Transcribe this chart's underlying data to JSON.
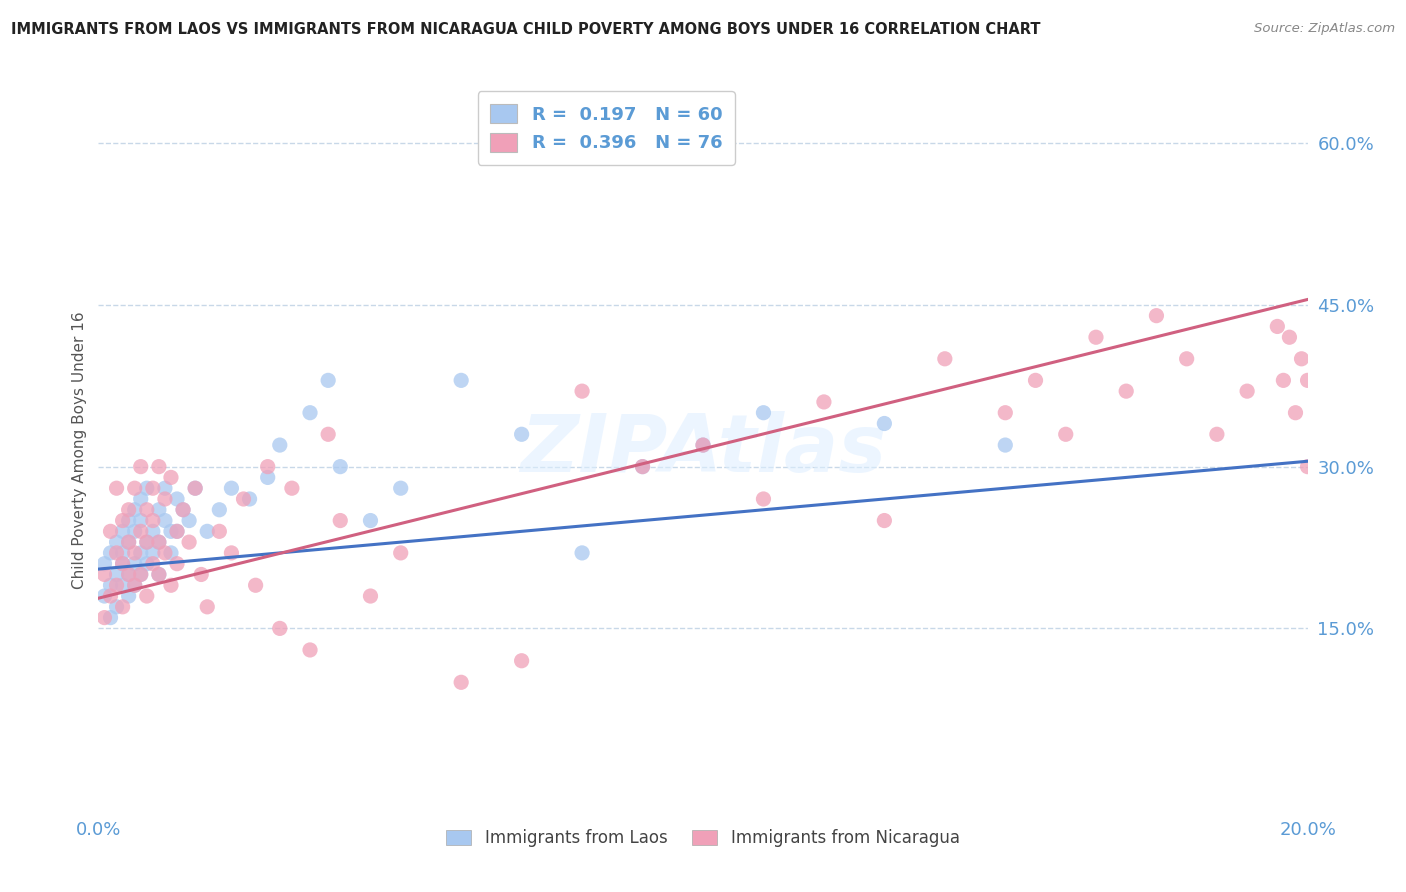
{
  "title": "IMMIGRANTS FROM LAOS VS IMMIGRANTS FROM NICARAGUA CHILD POVERTY AMONG BOYS UNDER 16 CORRELATION CHART",
  "source": "Source: ZipAtlas.com",
  "ylabel": "Child Poverty Among Boys Under 16",
  "xlim": [
    0.0,
    0.2
  ],
  "ylim": [
    -0.02,
    0.65
  ],
  "ytick_vals": [
    0.15,
    0.3,
    0.45,
    0.6
  ],
  "ytick_labels": [
    "15.0%",
    "30.0%",
    "45.0%",
    "60.0%"
  ],
  "xtick_vals": [
    0.0,
    0.2
  ],
  "xtick_labels": [
    "0.0%",
    "20.0%"
  ],
  "series1_color": "#a8c8f0",
  "series1_line_color": "#4472c4",
  "series2_color": "#f0a0b8",
  "series2_line_color": "#d06080",
  "R1": 0.197,
  "N1": 60,
  "R2": 0.396,
  "N2": 76,
  "legend_label1": "Immigrants from Laos",
  "legend_label2": "Immigrants from Nicaragua",
  "watermark": "ZIPAtlas",
  "title_color": "#222222",
  "axis_color": "#5b9bd5",
  "grid_color": "#c8d8e8",
  "background_color": "#ffffff",
  "trendline1_x0": 0.0,
  "trendline1_y0": 0.205,
  "trendline1_x1": 0.2,
  "trendline1_y1": 0.305,
  "trendline2_x0": 0.0,
  "trendline2_y0": 0.178,
  "trendline2_x1": 0.2,
  "trendline2_y1": 0.455,
  "laos_x": [
    0.001,
    0.001,
    0.002,
    0.002,
    0.002,
    0.003,
    0.003,
    0.003,
    0.004,
    0.004,
    0.004,
    0.004,
    0.005,
    0.005,
    0.005,
    0.005,
    0.006,
    0.006,
    0.006,
    0.006,
    0.007,
    0.007,
    0.007,
    0.007,
    0.008,
    0.008,
    0.008,
    0.009,
    0.009,
    0.01,
    0.01,
    0.01,
    0.011,
    0.011,
    0.012,
    0.012,
    0.013,
    0.013,
    0.014,
    0.015,
    0.016,
    0.018,
    0.02,
    0.022,
    0.025,
    0.028,
    0.03,
    0.035,
    0.038,
    0.04,
    0.045,
    0.05,
    0.06,
    0.07,
    0.08,
    0.09,
    0.1,
    0.11,
    0.13,
    0.15
  ],
  "laos_y": [
    0.21,
    0.18,
    0.22,
    0.19,
    0.16,
    0.23,
    0.2,
    0.17,
    0.24,
    0.21,
    0.19,
    0.22,
    0.2,
    0.25,
    0.18,
    0.23,
    0.21,
    0.26,
    0.19,
    0.24,
    0.22,
    0.27,
    0.2,
    0.25,
    0.23,
    0.28,
    0.21,
    0.24,
    0.22,
    0.26,
    0.23,
    0.2,
    0.25,
    0.28,
    0.24,
    0.22,
    0.27,
    0.24,
    0.26,
    0.25,
    0.28,
    0.24,
    0.26,
    0.28,
    0.27,
    0.29,
    0.32,
    0.35,
    0.38,
    0.3,
    0.25,
    0.28,
    0.38,
    0.33,
    0.22,
    0.3,
    0.32,
    0.35,
    0.34,
    0.32
  ],
  "nicaragua_x": [
    0.001,
    0.001,
    0.002,
    0.002,
    0.003,
    0.003,
    0.003,
    0.004,
    0.004,
    0.004,
    0.005,
    0.005,
    0.005,
    0.006,
    0.006,
    0.006,
    0.007,
    0.007,
    0.007,
    0.008,
    0.008,
    0.008,
    0.009,
    0.009,
    0.009,
    0.01,
    0.01,
    0.01,
    0.011,
    0.011,
    0.012,
    0.012,
    0.013,
    0.013,
    0.014,
    0.015,
    0.016,
    0.017,
    0.018,
    0.02,
    0.022,
    0.024,
    0.026,
    0.028,
    0.03,
    0.032,
    0.035,
    0.038,
    0.04,
    0.045,
    0.05,
    0.06,
    0.07,
    0.08,
    0.09,
    0.1,
    0.11,
    0.12,
    0.13,
    0.14,
    0.15,
    0.155,
    0.16,
    0.165,
    0.17,
    0.175,
    0.18,
    0.185,
    0.19,
    0.195,
    0.196,
    0.197,
    0.198,
    0.199,
    0.2,
    0.2
  ],
  "nicaragua_y": [
    0.2,
    0.16,
    0.24,
    0.18,
    0.22,
    0.19,
    0.28,
    0.17,
    0.25,
    0.21,
    0.2,
    0.26,
    0.23,
    0.19,
    0.28,
    0.22,
    0.24,
    0.2,
    0.3,
    0.18,
    0.26,
    0.23,
    0.21,
    0.28,
    0.25,
    0.2,
    0.3,
    0.23,
    0.27,
    0.22,
    0.19,
    0.29,
    0.24,
    0.21,
    0.26,
    0.23,
    0.28,
    0.2,
    0.17,
    0.24,
    0.22,
    0.27,
    0.19,
    0.3,
    0.15,
    0.28,
    0.13,
    0.33,
    0.25,
    0.18,
    0.22,
    0.1,
    0.12,
    0.37,
    0.3,
    0.32,
    0.27,
    0.36,
    0.25,
    0.4,
    0.35,
    0.38,
    0.33,
    0.42,
    0.37,
    0.44,
    0.4,
    0.33,
    0.37,
    0.43,
    0.38,
    0.42,
    0.35,
    0.4,
    0.38,
    0.3
  ]
}
